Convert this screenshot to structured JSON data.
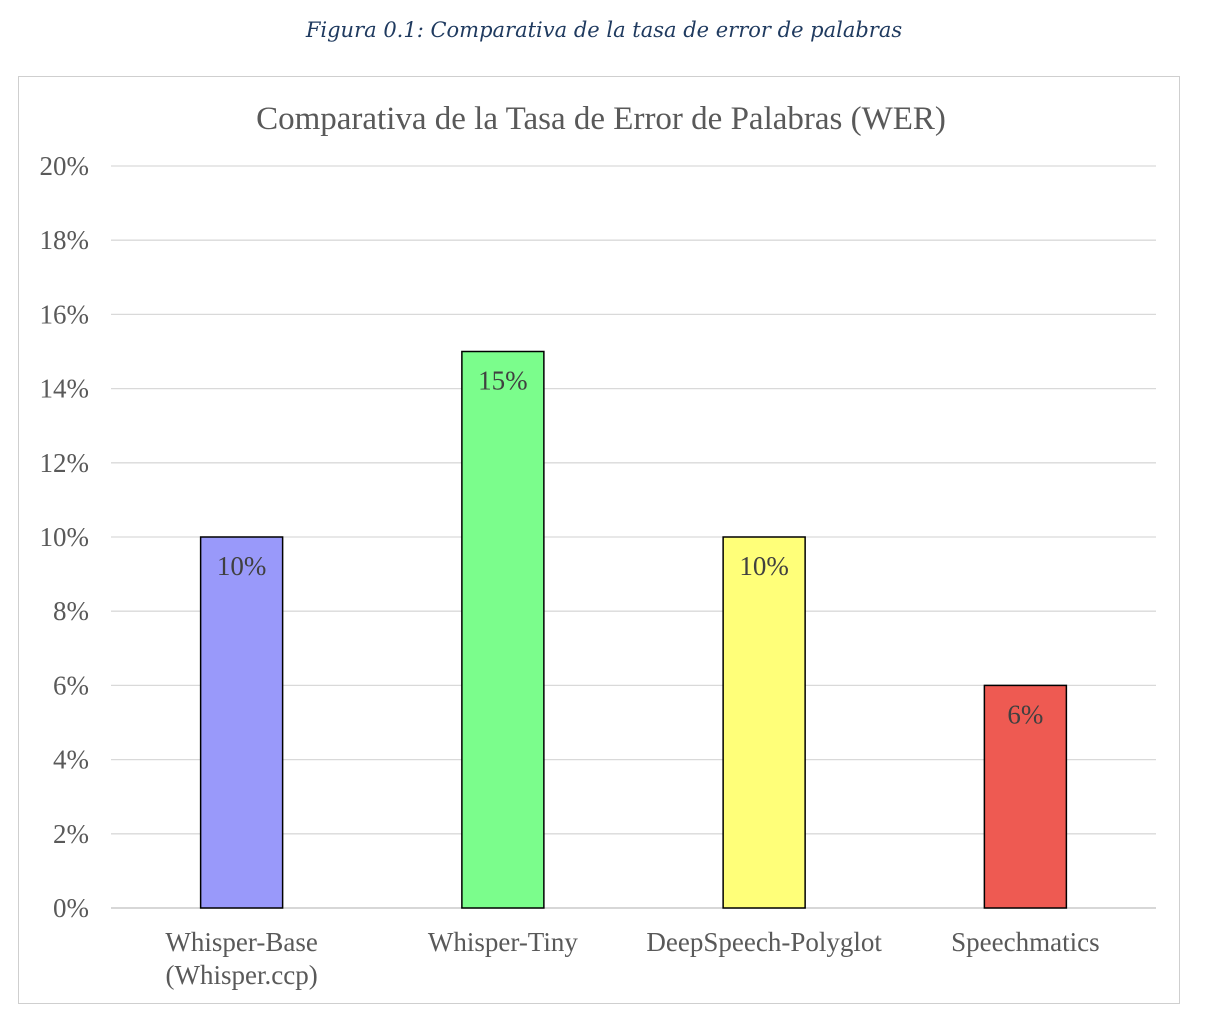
{
  "caption": "Figura 0.1: Comparativa de la tasa de error de palabras",
  "chart_data": {
    "type": "bar",
    "title": "Comparativa de la Tasa de Error de Palabras (WER)",
    "xlabel": "",
    "ylabel": "",
    "categories": [
      [
        "Whisper-Base",
        "(Whisper.ccp)"
      ],
      [
        "Whisper-Tiny"
      ],
      [
        "DeepSpeech-Polyglot"
      ],
      [
        "Speechmatics"
      ]
    ],
    "values": [
      10,
      15,
      10,
      6
    ],
    "value_labels": [
      "10%",
      "15%",
      "10%",
      "6%"
    ],
    "colors": [
      "#9999fa",
      "#7bfd8c",
      "#ffff79",
      "#ee5a52"
    ],
    "ylim": [
      0,
      20
    ],
    "yticks": [
      0,
      2,
      4,
      6,
      8,
      10,
      12,
      14,
      16,
      18,
      20
    ],
    "ytick_labels": [
      "0%",
      "2%",
      "4%",
      "6%",
      "8%",
      "10%",
      "12%",
      "14%",
      "16%",
      "18%",
      "20%"
    ],
    "grid": true,
    "legend": "none"
  }
}
